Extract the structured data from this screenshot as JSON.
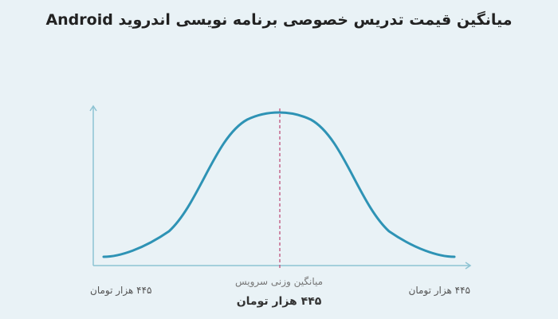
{
  "chart_data": {
    "type": "line",
    "title": "میانگین قیمت تدریس خصوصی برنامه نویسی اندروید Android",
    "xlabel": "",
    "ylabel": "",
    "grid": false,
    "legend": "none",
    "colors": {
      "background": "#e9f2f6",
      "axis": "#8ec3d3",
      "curve": "#2e93b5",
      "mean_line": "#c0507a"
    },
    "tick_labels": {
      "left": "۴۴۵ هزار تومان",
      "right": "۴۴۵ هزار تومان"
    },
    "annotations": {
      "mean_label": "میانگین وزنی سرویس",
      "mean_value": "۴۴۵ هزار تومان"
    }
  }
}
